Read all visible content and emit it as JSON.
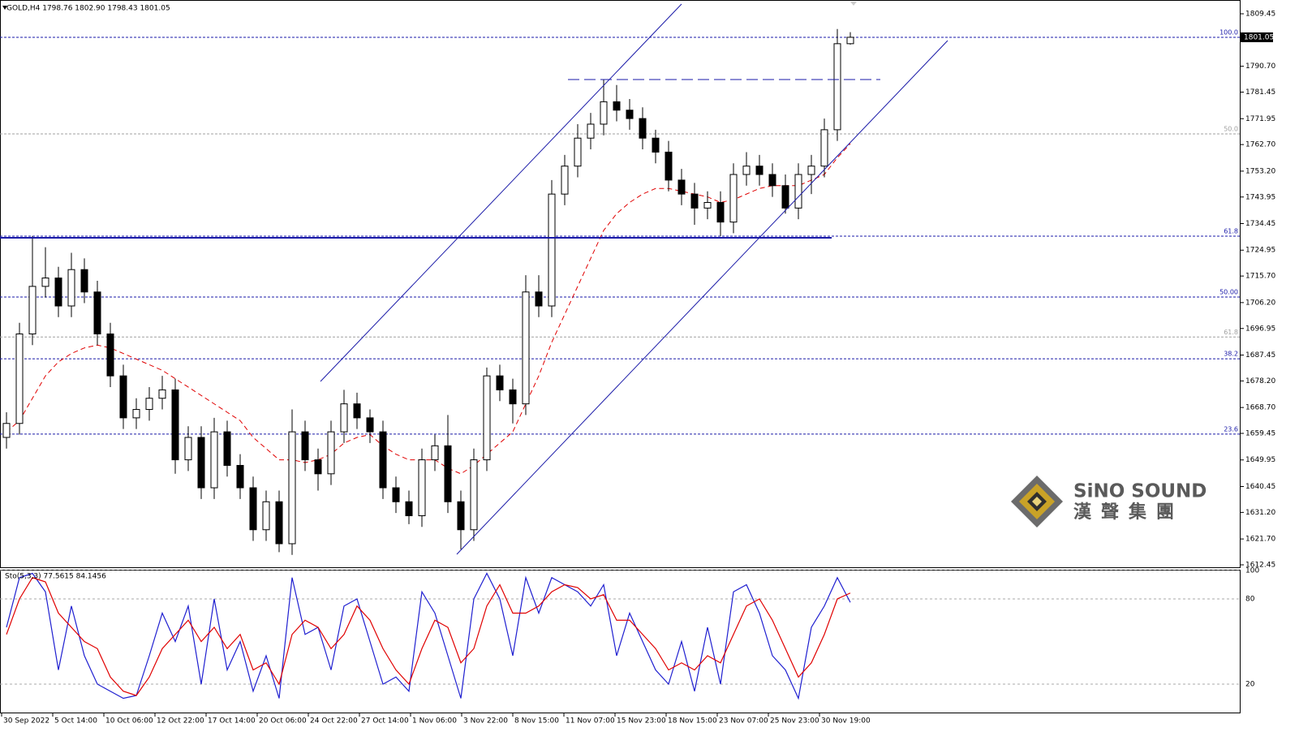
{
  "chart_data": {
    "type": "candlestick",
    "header": "GOLD,H4  1798.76 1802.90 1798.43 1801.05",
    "ylim": [
      1612.45,
      1809.45
    ],
    "yticks": [
      {
        "value": 1809.45,
        "label": "1809.45"
      },
      {
        "value": 1790.7,
        "label": "1790.70"
      },
      {
        "value": 1781.45,
        "label": "1781.45"
      },
      {
        "value": 1771.95,
        "label": "1771.95"
      },
      {
        "value": 1762.7,
        "label": "1762.70"
      },
      {
        "value": 1753.2,
        "label": "1753.20"
      },
      {
        "value": 1743.95,
        "label": "1743.95"
      },
      {
        "value": 1734.45,
        "label": "1734.45"
      },
      {
        "value": 1724.95,
        "label": "1724.95"
      },
      {
        "value": 1715.7,
        "label": "1715.70"
      },
      {
        "value": 1706.2,
        "label": "1706.20"
      },
      {
        "value": 1696.95,
        "label": "1696.95"
      },
      {
        "value": 1687.45,
        "label": "1687.45"
      },
      {
        "value": 1678.2,
        "label": "1678.20"
      },
      {
        "value": 1668.7,
        "label": "1668.70"
      },
      {
        "value": 1659.45,
        "label": "1659.45"
      },
      {
        "value": 1649.95,
        "label": "1649.95"
      },
      {
        "value": 1640.45,
        "label": "1640.45"
      },
      {
        "value": 1631.2,
        "label": "1631.20"
      },
      {
        "value": 1621.7,
        "label": "1621.70"
      },
      {
        "value": 1612.45,
        "label": "1612.45"
      }
    ],
    "current_price": 1801.05,
    "levels": [
      {
        "label": "100.0",
        "value": 1801.05,
        "color": "#1a1aa8"
      },
      {
        "label": "50.0",
        "value": 1766.5,
        "color": "#a0a0a0"
      },
      {
        "label": "61.8",
        "value": 1729.95,
        "color": "#1a1aa8"
      },
      {
        "label": "50.00",
        "value": 1708.2,
        "color": "#1a1aa8"
      },
      {
        "label": "61.8",
        "value": 1693.9,
        "color": "#a0a0a0"
      },
      {
        "label": "38.2",
        "value": 1686.1,
        "color": "#1a1aa8"
      },
      {
        "label": "23.6",
        "value": 1659.2,
        "color": "#1a1aa8"
      }
    ],
    "candles": [
      [
        1658,
        1667,
        1654,
        1663
      ],
      [
        1663,
        1699,
        1659,
        1695
      ],
      [
        1695,
        1730,
        1691,
        1712
      ],
      [
        1712,
        1726,
        1708,
        1715
      ],
      [
        1715,
        1719,
        1701,
        1705
      ],
      [
        1705,
        1724,
        1701,
        1718
      ],
      [
        1718,
        1722,
        1706,
        1710
      ],
      [
        1710,
        1714,
        1691,
        1695
      ],
      [
        1695,
        1699,
        1676,
        1680
      ],
      [
        1680,
        1684,
        1661,
        1665
      ],
      [
        1665,
        1672,
        1661,
        1668
      ],
      [
        1668,
        1676,
        1664,
        1672
      ],
      [
        1672,
        1680,
        1668,
        1675
      ],
      [
        1675,
        1679,
        1645,
        1650
      ],
      [
        1650,
        1662,
        1646,
        1658
      ],
      [
        1658,
        1662,
        1636,
        1640
      ],
      [
        1640,
        1665,
        1636,
        1660
      ],
      [
        1660,
        1664,
        1644,
        1648
      ],
      [
        1648,
        1652,
        1636,
        1640
      ],
      [
        1640,
        1644,
        1621,
        1625
      ],
      [
        1625,
        1639,
        1621,
        1635
      ],
      [
        1635,
        1639,
        1617,
        1620
      ],
      [
        1620,
        1668,
        1616,
        1660
      ],
      [
        1660,
        1664,
        1646,
        1650
      ],
      [
        1650,
        1654,
        1639,
        1645
      ],
      [
        1645,
        1664,
        1641,
        1660
      ],
      [
        1660,
        1675,
        1656,
        1670
      ],
      [
        1670,
        1674,
        1661,
        1665
      ],
      [
        1665,
        1668,
        1656,
        1660
      ],
      [
        1660,
        1664,
        1636,
        1640
      ],
      [
        1640,
        1644,
        1631,
        1635
      ],
      [
        1635,
        1639,
        1627,
        1630
      ],
      [
        1630,
        1654,
        1626,
        1650
      ],
      [
        1650,
        1659,
        1646,
        1655
      ],
      [
        1655,
        1666,
        1631,
        1635
      ],
      [
        1635,
        1639,
        1618,
        1625
      ],
      [
        1625,
        1654,
        1621,
        1650
      ],
      [
        1650,
        1683,
        1646,
        1680
      ],
      [
        1680,
        1684,
        1671,
        1675
      ],
      [
        1675,
        1679,
        1663,
        1670
      ],
      [
        1670,
        1716,
        1666,
        1710
      ],
      [
        1710,
        1716,
        1701,
        1705
      ],
      [
        1705,
        1750,
        1701,
        1745
      ],
      [
        1745,
        1759,
        1741,
        1755
      ],
      [
        1755,
        1770,
        1751,
        1765
      ],
      [
        1765,
        1774,
        1761,
        1770
      ],
      [
        1770,
        1786,
        1766,
        1778
      ],
      [
        1778,
        1784,
        1771,
        1775
      ],
      [
        1775,
        1779,
        1768,
        1772
      ],
      [
        1772,
        1776,
        1761,
        1765
      ],
      [
        1765,
        1768,
        1756,
        1760
      ],
      [
        1760,
        1764,
        1746,
        1750
      ],
      [
        1750,
        1754,
        1741,
        1745
      ],
      [
        1745,
        1749,
        1734,
        1740
      ],
      [
        1740,
        1746,
        1736,
        1742
      ],
      [
        1742,
        1746,
        1730,
        1735
      ],
      [
        1735,
        1756,
        1731,
        1752
      ],
      [
        1752,
        1760,
        1748,
        1755
      ],
      [
        1755,
        1759,
        1748,
        1752
      ],
      [
        1752,
        1756,
        1744,
        1748
      ],
      [
        1748,
        1752,
        1738,
        1740
      ],
      [
        1740,
        1756,
        1736,
        1752
      ],
      [
        1752,
        1759,
        1745,
        1755
      ],
      [
        1755,
        1772,
        1751,
        1768
      ],
      [
        1768,
        1804,
        1764,
        1798.76
      ],
      [
        1798.76,
        1802.9,
        1798.43,
        1801.05
      ]
    ],
    "ma": {
      "color": "#e00000",
      "values": [
        1660,
        1664,
        1672,
        1680,
        1685,
        1688,
        1690,
        1691,
        1690,
        1688,
        1686,
        1684,
        1682,
        1679,
        1676,
        1673,
        1670,
        1667,
        1664,
        1658,
        1654,
        1650,
        1650,
        1649,
        1650,
        1652,
        1656,
        1658,
        1659,
        1655,
        1652,
        1650,
        1650,
        1650,
        1647,
        1645,
        1648,
        1652,
        1656,
        1660,
        1670,
        1680,
        1692,
        1702,
        1712,
        1722,
        1732,
        1738,
        1742,
        1745,
        1747,
        1747,
        1746,
        1745,
        1744,
        1742,
        1743,
        1745,
        1747,
        1748,
        1748,
        1748,
        1750,
        1752,
        1758,
        1763
      ]
    },
    "stochastic": {
      "label": "Sto(5,3,3) 77.5615 84.1456",
      "ylim": [
        0,
        100
      ],
      "yticks": [
        100,
        80,
        20
      ],
      "series": [
        {
          "color": "#1f1fd0",
          "values": [
            60,
            95,
            98,
            85,
            30,
            75,
            40,
            20,
            15,
            10,
            12,
            40,
            70,
            50,
            75,
            20,
            80,
            30,
            50,
            15,
            40,
            10,
            95,
            55,
            60,
            30,
            75,
            80,
            50,
            20,
            25,
            15,
            85,
            70,
            40,
            10,
            80,
            98,
            80,
            40,
            95,
            70,
            95,
            90,
            85,
            75,
            90,
            40,
            70,
            50,
            30,
            20,
            50,
            15,
            60,
            20,
            85,
            90,
            70,
            40,
            30,
            10,
            60,
            75,
            95,
            77.5615
          ]
        },
        {
          "color": "#e00000",
          "values": [
            55,
            80,
            95,
            92,
            70,
            60,
            50,
            45,
            25,
            15,
            12,
            25,
            45,
            55,
            65,
            50,
            60,
            45,
            55,
            30,
            35,
            20,
            55,
            65,
            60,
            45,
            55,
            75,
            65,
            45,
            30,
            20,
            45,
            65,
            60,
            35,
            45,
            75,
            90,
            70,
            70,
            75,
            85,
            90,
            88,
            80,
            83,
            65,
            65,
            55,
            45,
            30,
            35,
            30,
            40,
            35,
            55,
            75,
            80,
            65,
            45,
            25,
            35,
            55,
            80,
            84.1456
          ]
        }
      ]
    },
    "time_labels": [
      "30 Sep 2022",
      "5 Oct 14:00",
      "10 Oct 06:00",
      "12 Oct 22:00",
      "17 Oct 14:00",
      "20 Oct 06:00",
      "24 Oct 22:00",
      "27 Oct 14:00",
      "1 Nov 06:00",
      "3 Nov 22:00",
      "8 Nov 15:00",
      "11 Nov 07:00",
      "15 Nov 23:00",
      "18 Nov 15:00",
      "23 Nov 07:00",
      "25 Nov 23:00",
      "30 Nov 19:00"
    ],
    "watermark": {
      "name": "SiNO SOUND",
      "chinese": "漢聲集團"
    }
  }
}
